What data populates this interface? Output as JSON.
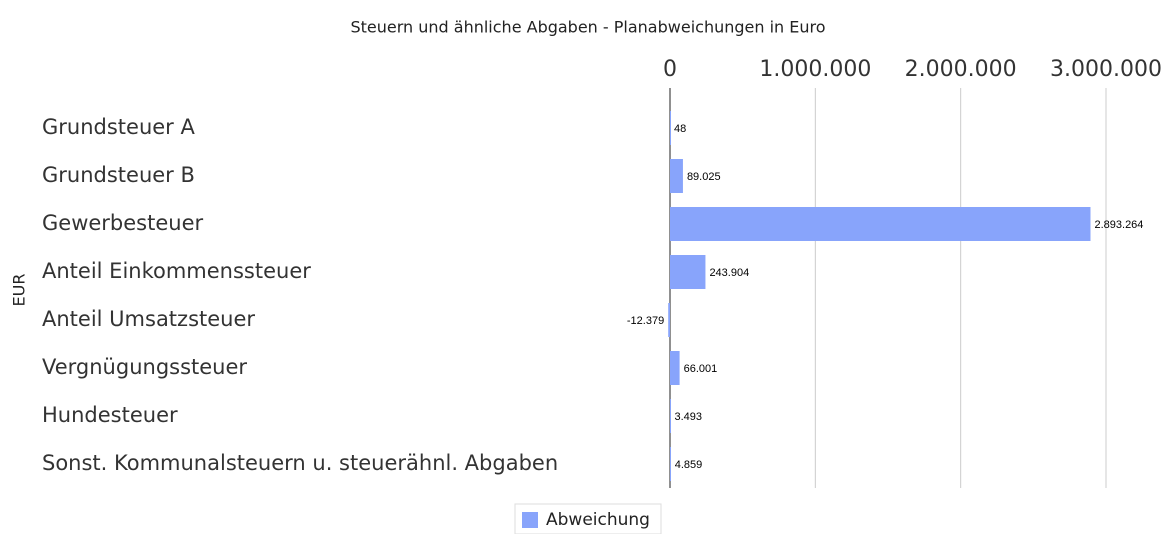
{
  "chart_data": {
    "type": "hbar",
    "title": "Steuern und ähnliche Abgaben - Planabweichungen in Euro",
    "y_label": "EUR",
    "categories": [
      "Grundsteuer A",
      "Grundsteuer B",
      "Gewerbesteuer",
      "Anteil Einkommenssteuer",
      "Anteil Umsatzsteuer",
      "Vergnügungssteuer",
      "Hundesteuer",
      "Sonst. Kommunalsteuern u. steuerähnl. Abgaben"
    ],
    "series": [
      {
        "name": "Abweichung",
        "color": "#88a4fb",
        "values": [
          48,
          89025,
          2893264,
          243904,
          -12379,
          66001,
          3493,
          4859
        ],
        "value_labels": [
          "48",
          "89.025",
          "2.893.264",
          "243.904",
          "-12.379",
          "66.001",
          "3.493",
          "4.859"
        ]
      }
    ],
    "xlim": [
      0,
      3000000
    ],
    "xticks": [
      0,
      {
        "value": 1000000,
        "label": "1.000.000"
      },
      {
        "value": 2000000,
        "label": "2.000.000"
      },
      {
        "value": 3000000,
        "label": "3.000.000"
      }
    ],
    "grid": true,
    "legend": "bottom"
  }
}
